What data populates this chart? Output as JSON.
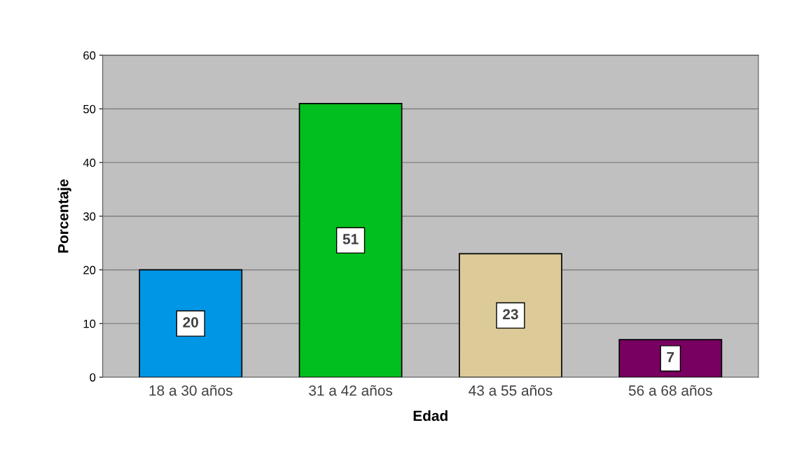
{
  "chart_data": {
    "type": "bar",
    "xlabel": "Edad",
    "ylabel": "Porcentaje",
    "categories": [
      "18 a 30 años",
      "31 a 42 años",
      "43 a 55 años",
      "56 a 68 años"
    ],
    "values": [
      20,
      51,
      23,
      7
    ],
    "colors": [
      "#0096e6",
      "#00bf1e",
      "#dccb98",
      "#780060"
    ],
    "ylim": [
      0,
      60
    ],
    "yticks": [
      0,
      10,
      20,
      30,
      40,
      50,
      60
    ],
    "grid": "y",
    "data_labels": true
  }
}
